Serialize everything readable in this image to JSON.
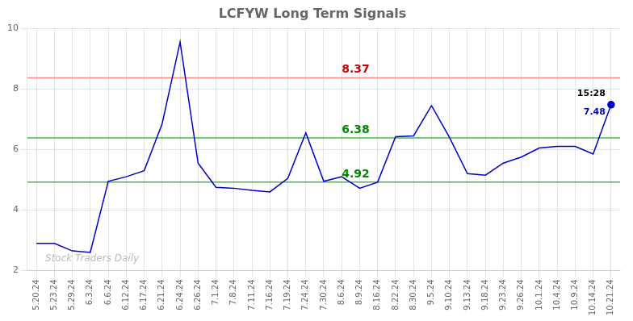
{
  "chart_data": {
    "type": "line",
    "title": "LCFYW Long Term Signals",
    "categories": [
      "5.20.24",
      "5.23.24",
      "5.29.24",
      "6.3.24",
      "6.6.24",
      "6.12.24",
      "6.17.24",
      "6.21.24",
      "6.24.24",
      "6.26.24",
      "7.1.24",
      "7.8.24",
      "7.11.24",
      "7.16.24",
      "7.19.24",
      "7.24.24",
      "7.30.24",
      "8.6.24",
      "8.9.24",
      "8.16.24",
      "8.22.24",
      "8.30.24",
      "9.5.24",
      "9.10.24",
      "9.13.24",
      "9.18.24",
      "9.23.24",
      "9.26.24",
      "10.1.24",
      "10.4.24",
      "10.9.24",
      "10.14.24",
      "10.21.24"
    ],
    "values": [
      2.9,
      2.9,
      2.65,
      2.6,
      4.95,
      5.1,
      5.3,
      6.85,
      9.55,
      5.55,
      4.75,
      4.72,
      4.65,
      4.6,
      5.05,
      6.55,
      4.95,
      5.1,
      4.72,
      4.92,
      6.42,
      6.45,
      7.45,
      6.4,
      5.2,
      5.15,
      5.55,
      5.75,
      6.05,
      6.1,
      6.1,
      5.85,
      7.48
    ],
    "color": "#0000cc",
    "hlines": [
      {
        "value": 8.37,
        "color": "#ff8888"
      },
      {
        "value": 6.38,
        "color": "#44bb44"
      },
      {
        "value": 4.92,
        "color": "#44bb44"
      }
    ],
    "annotations": [
      {
        "text": "8.37",
        "x": "8.6.24",
        "y": 8.37,
        "color": "#cc0000"
      },
      {
        "text": "6.38",
        "x": "8.6.24",
        "y": 6.38,
        "color": "#008800"
      },
      {
        "text": "4.92",
        "x": "8.6.24",
        "y": 4.92,
        "color": "#008800"
      },
      {
        "text": "15:28",
        "x": "10.21.24",
        "y": 7.48,
        "color": "#000000"
      },
      {
        "text": "7.48",
        "x": "10.21.24",
        "y": 7.48,
        "color": "#0000cc",
        "marker": "circle"
      },
      {
        "text": "Stock Traders Daily",
        "color": "#bbbbbb"
      }
    ],
    "ylim": [
      2,
      10
    ],
    "yticks": [
      2,
      4,
      6,
      8,
      10
    ],
    "grid": true
  }
}
